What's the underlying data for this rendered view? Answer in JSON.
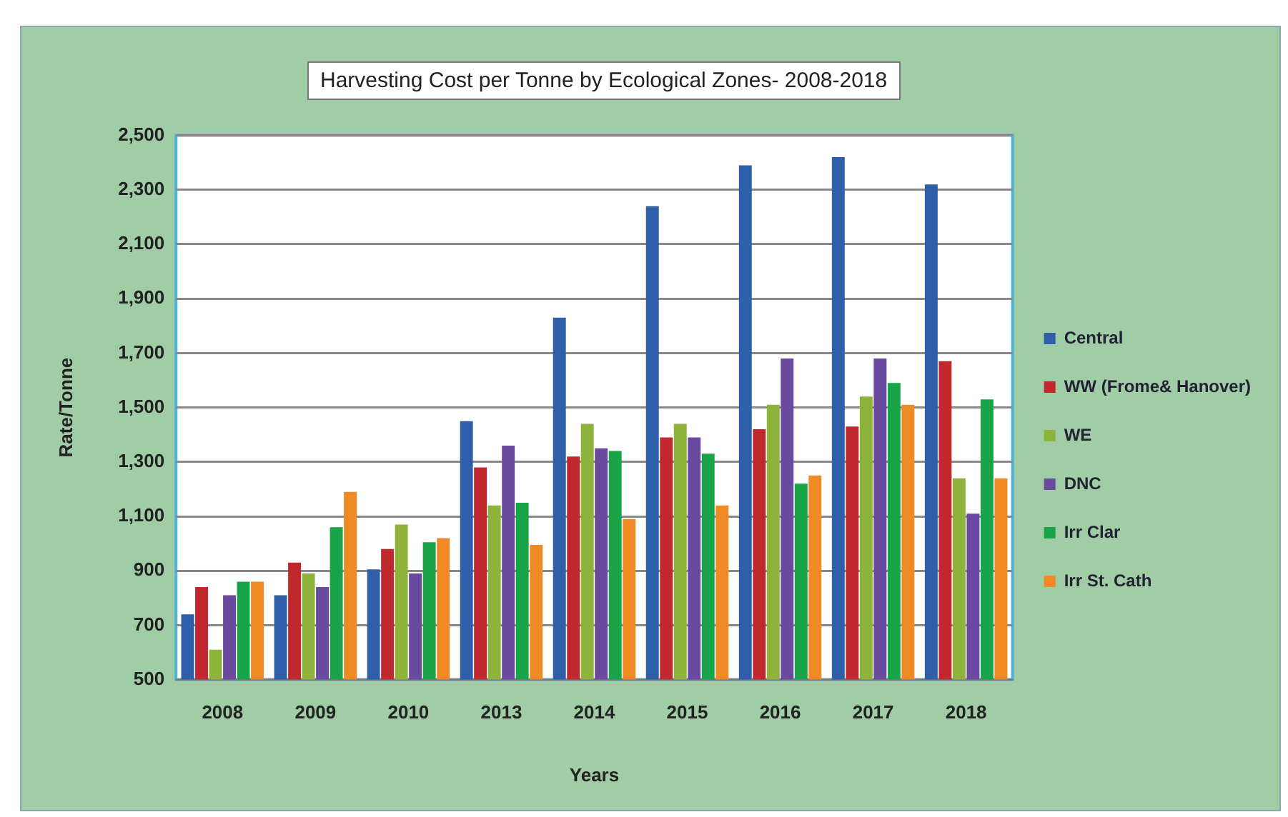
{
  "chart_data": {
    "type": "bar",
    "title": "Harvesting Cost per Tonne by Ecological Zones- 2008-2018",
    "xlabel": "Years",
    "ylabel": "Rate/Tonne",
    "categories": [
      "2008",
      "2009",
      "2010",
      "2013",
      "2014",
      "2015",
      "2016",
      "2017",
      "2018"
    ],
    "series": [
      {
        "name": "Central",
        "color": "#2e5fa8",
        "values": [
          740,
          810,
          905,
          1450,
          1830,
          2240,
          2390,
          2420,
          2320
        ]
      },
      {
        "name": "WW (Frome& Hanover)",
        "color": "#c0282d",
        "values": [
          840,
          930,
          980,
          1280,
          1320,
          1390,
          1420,
          1430,
          1670
        ]
      },
      {
        "name": "WE",
        "color": "#8db33a",
        "values": [
          610,
          890,
          1070,
          1140,
          1440,
          1440,
          1510,
          1540,
          1240
        ]
      },
      {
        "name": "DNC",
        "color": "#6a4a9e",
        "values": [
          810,
          840,
          890,
          1360,
          1350,
          1390,
          1680,
          1680,
          1110
        ]
      },
      {
        "name": "Irr Clar",
        "color": "#1aa44a",
        "values": [
          860,
          1060,
          1005,
          1150,
          1340,
          1330,
          1220,
          1590,
          1530
        ]
      },
      {
        "name": "Irr St. Cath",
        "color": "#f08a24",
        "values": [
          860,
          1190,
          1020,
          995,
          1090,
          1140,
          1250,
          1510,
          1240
        ]
      }
    ],
    "ylim": [
      500,
      2500
    ],
    "yticks": [
      500,
      700,
      900,
      {
        "value": 1100,
        "label": "1,100"
      },
      {
        "value": 1300,
        "label": "1,300"
      },
      {
        "value": 1500,
        "label": "1,500"
      },
      {
        "value": 1700,
        "label": "1,700"
      },
      {
        "value": 1900,
        "label": "1,900"
      },
      {
        "value": 2100,
        "label": "2,100"
      },
      {
        "value": 2300,
        "label": "2,300"
      },
      {
        "value": 2500,
        "label": "2,500"
      }
    ],
    "grid": "y",
    "legend": "right"
  }
}
